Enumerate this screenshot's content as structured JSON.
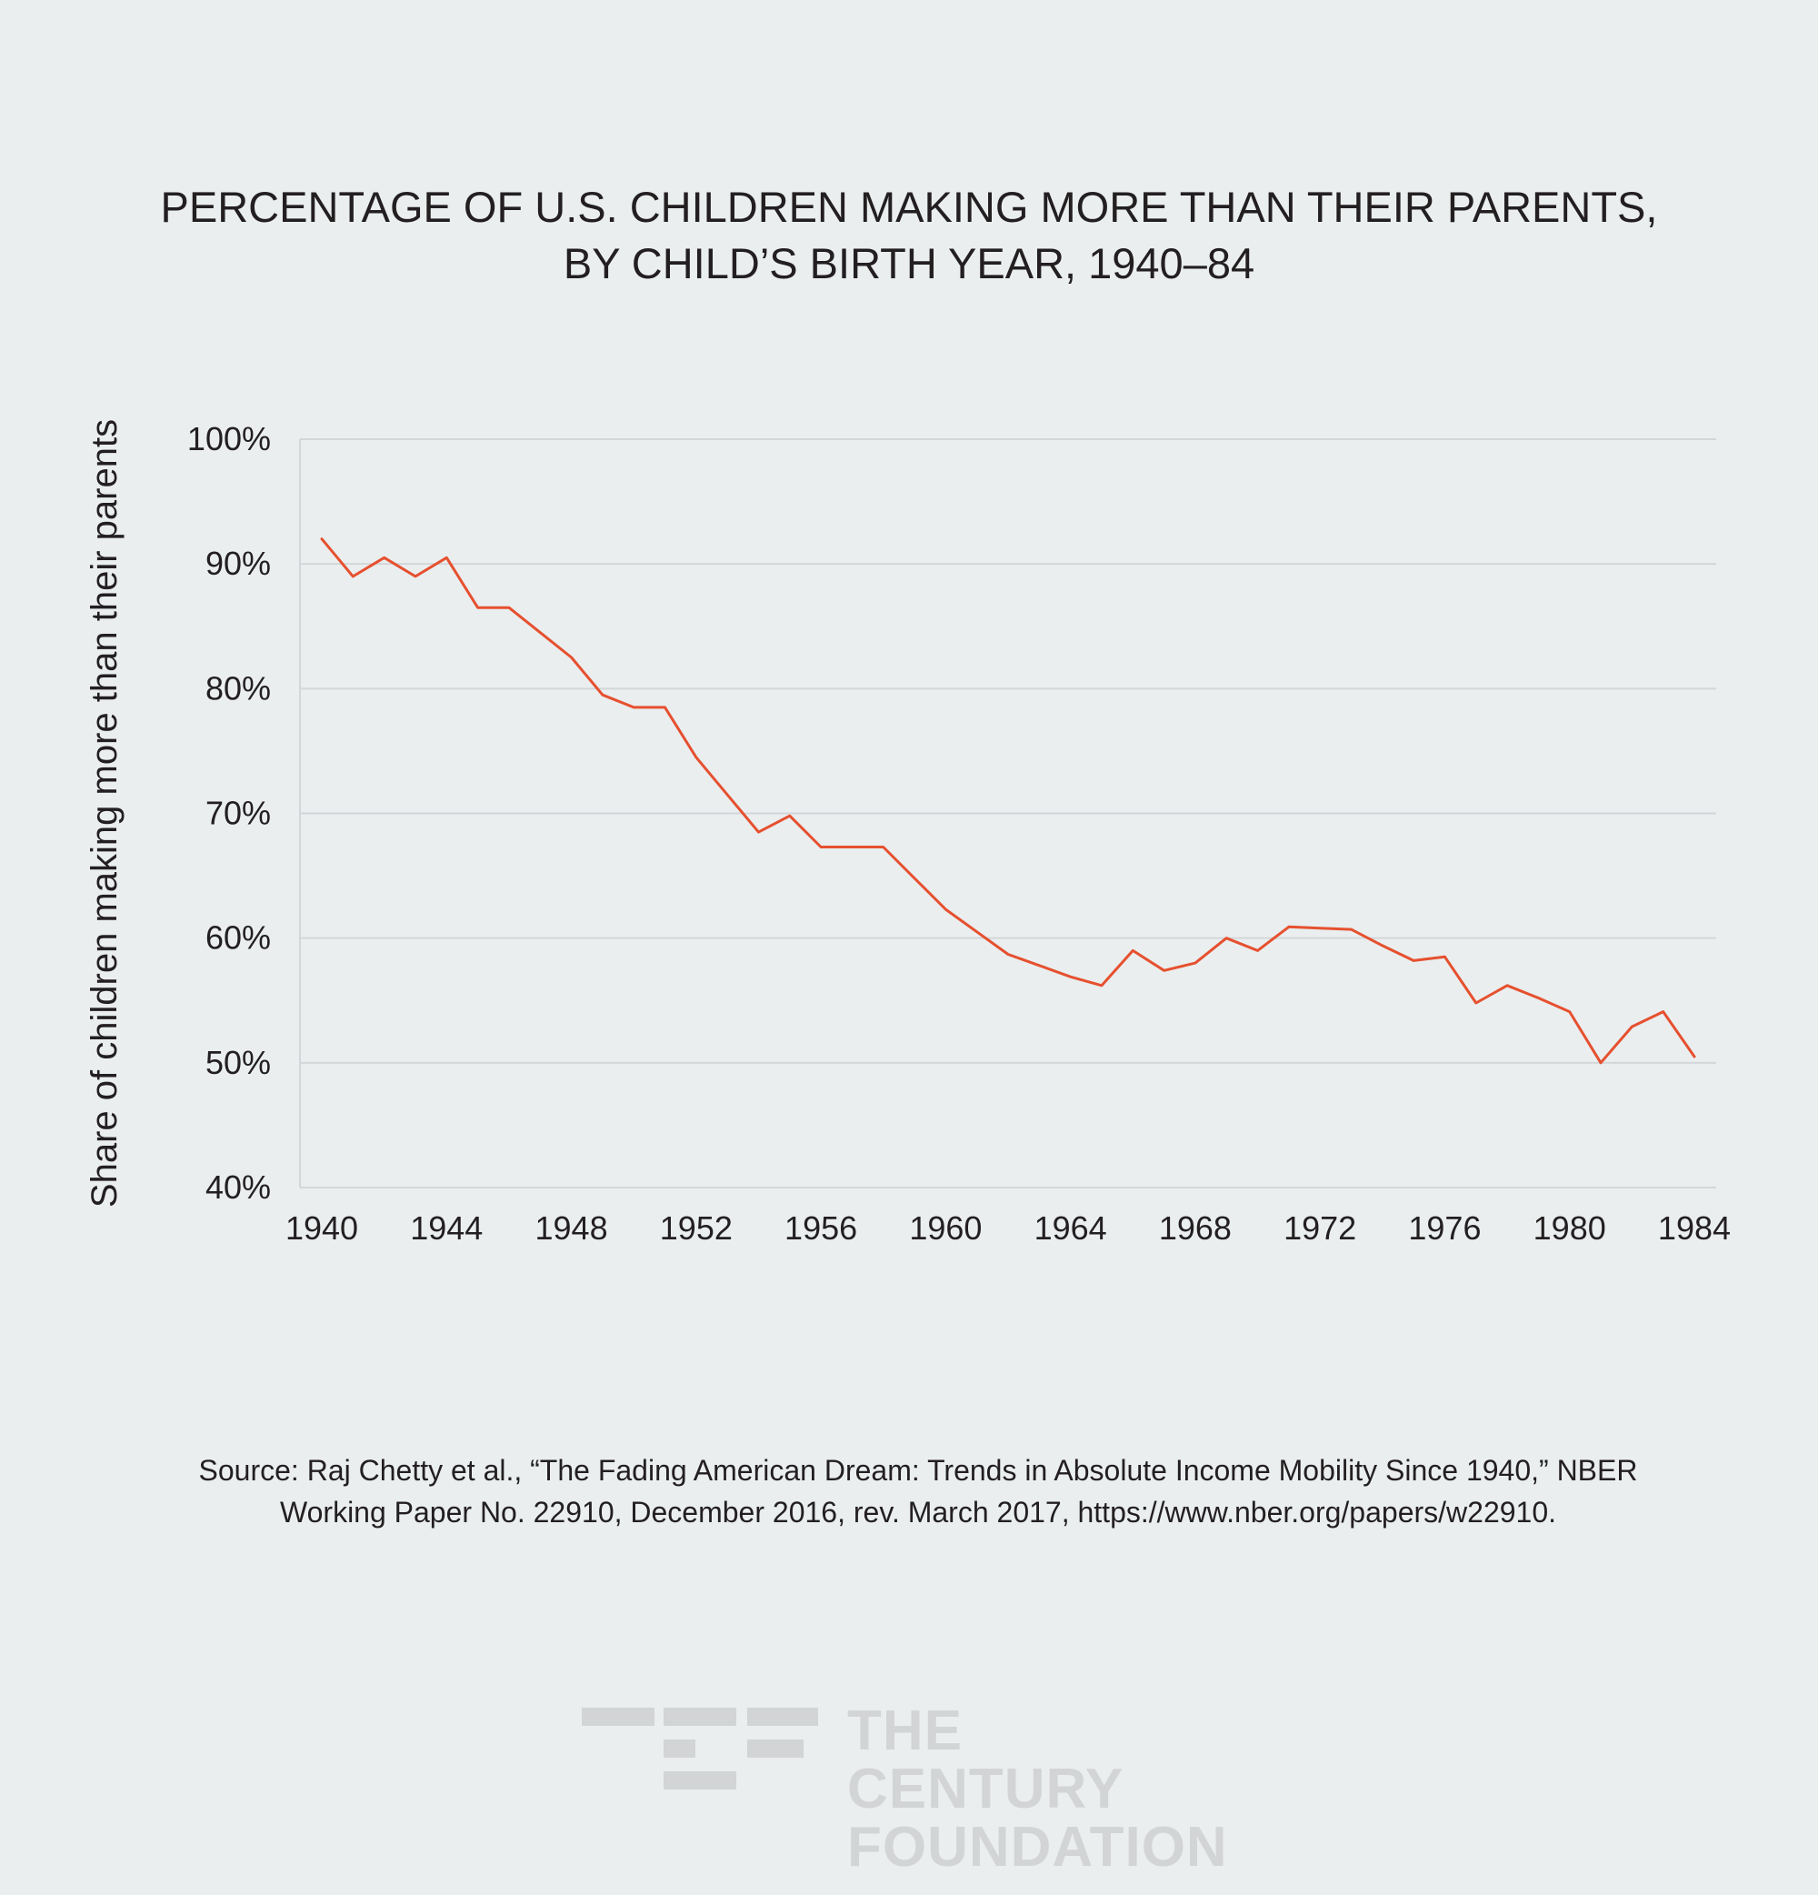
{
  "chart_data": {
    "type": "line",
    "title": [
      "PERCENTAGE OF U.S. CHILDREN MAKING MORE THAN THEIR PARENTS,",
      "BY CHILD’S BIRTH YEAR, 1940–84"
    ],
    "xlabel": "",
    "ylabel": "Share of children making more than their parents",
    "x": [
      1940,
      1941,
      1942,
      1943,
      1944,
      1945,
      1946,
      1947,
      1948,
      1949,
      1950,
      1951,
      1952,
      1953,
      1954,
      1955,
      1956,
      1957,
      1958,
      1959,
      1960,
      1961,
      1962,
      1963,
      1964,
      1965,
      1966,
      1967,
      1968,
      1969,
      1970,
      1971,
      1972,
      1973,
      1974,
      1975,
      1976,
      1977,
      1978,
      1979,
      1980,
      1981,
      1982,
      1983,
      1984
    ],
    "series": [
      {
        "values": [
          92,
          89,
          90.5,
          89,
          90.5,
          86.5,
          86.5,
          84.5,
          82.5,
          79.5,
          78.5,
          78.5,
          74.5,
          71.5,
          68.5,
          69.8,
          67.3,
          67.3,
          67.3,
          64.8,
          62.3,
          60.5,
          58.7,
          57.8,
          56.9,
          56.2,
          59,
          57.4,
          58,
          60,
          59,
          60.9,
          60.8,
          60.7,
          59.4,
          58.2,
          58.5,
          54.8,
          56.2,
          55.2,
          54.1,
          50,
          52.9,
          54.1,
          50.5
        ],
        "color": "#e6502f"
      }
    ],
    "xticks": [
      "1940",
      "1944",
      "1948",
      "1952",
      "1956",
      "1960",
      "1964",
      "1968",
      "1972",
      "1976",
      "1980",
      "1984"
    ],
    "yticks": [
      "40%",
      "50%",
      "60%",
      "70%",
      "80%",
      "90%",
      "100%"
    ],
    "ylim": [
      40,
      100
    ],
    "xlim": [
      1939.3,
      1984.7
    ],
    "grid": true,
    "legend": "none"
  },
  "source": [
    "Source: Raj Chetty et al., “The Fading American Dream: Trends in Absolute Income Mobility Since 1940,” NBER",
    "Working Paper No. 22910, December 2016, rev. March 2017, https://www.nber.org/papers/w22910."
  ],
  "logo": {
    "line1": "THE CENTURY",
    "line2": "FOUNDATION",
    "color": "#d2d4d5"
  }
}
